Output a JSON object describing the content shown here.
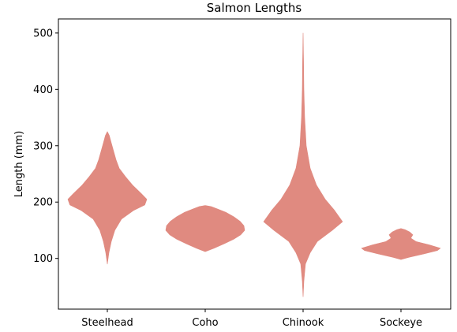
{
  "chart_data": {
    "type": "violin",
    "title": "Salmon Lengths",
    "xlabel": "",
    "ylabel": "Length (mm)",
    "ylim": [
      10,
      525
    ],
    "yticks": [
      100,
      200,
      300,
      400,
      500
    ],
    "categories": [
      "Steelhead",
      "Coho",
      "Chinook",
      "Sockeye"
    ],
    "fill_color": "#e08a80",
    "grid": false,
    "series": [
      {
        "profile": [
          [
            90,
            0.0
          ],
          [
            110,
            0.04
          ],
          [
            130,
            0.1
          ],
          [
            150,
            0.19
          ],
          [
            170,
            0.36
          ],
          [
            185,
            0.66
          ],
          [
            195,
            0.95
          ],
          [
            205,
            1.0
          ],
          [
            215,
            0.86
          ],
          [
            230,
            0.64
          ],
          [
            245,
            0.46
          ],
          [
            260,
            0.3
          ],
          [
            275,
            0.22
          ],
          [
            290,
            0.16
          ],
          [
            305,
            0.1
          ],
          [
            318,
            0.05
          ],
          [
            325,
            0.0
          ]
        ]
      },
      {
        "profile": [
          [
            112,
            0.0
          ],
          [
            118,
            0.22
          ],
          [
            126,
            0.48
          ],
          [
            134,
            0.72
          ],
          [
            142,
            0.9
          ],
          [
            150,
            1.0
          ],
          [
            158,
            0.98
          ],
          [
            166,
            0.88
          ],
          [
            174,
            0.72
          ],
          [
            182,
            0.52
          ],
          [
            188,
            0.3
          ],
          [
            192,
            0.15
          ],
          [
            194,
            0.0
          ]
        ]
      },
      {
        "profile": [
          [
            32,
            0.0
          ],
          [
            60,
            0.02
          ],
          [
            90,
            0.06
          ],
          [
            110,
            0.18
          ],
          [
            130,
            0.36
          ],
          [
            150,
            0.74
          ],
          [
            165,
            1.0
          ],
          [
            185,
            0.8
          ],
          [
            205,
            0.56
          ],
          [
            230,
            0.34
          ],
          [
            260,
            0.18
          ],
          [
            300,
            0.08
          ],
          [
            350,
            0.04
          ],
          [
            400,
            0.02
          ],
          [
            450,
            0.012
          ],
          [
            500,
            0.0
          ]
        ]
      },
      {
        "profile": [
          [
            98,
            0.0
          ],
          [
            102,
            0.2
          ],
          [
            108,
            0.58
          ],
          [
            114,
            0.92
          ],
          [
            118,
            1.0
          ],
          [
            124,
            0.72
          ],
          [
            130,
            0.38
          ],
          [
            136,
            0.25
          ],
          [
            142,
            0.3
          ],
          [
            147,
            0.22
          ],
          [
            151,
            0.1
          ],
          [
            153,
            0.0
          ]
        ]
      }
    ]
  }
}
